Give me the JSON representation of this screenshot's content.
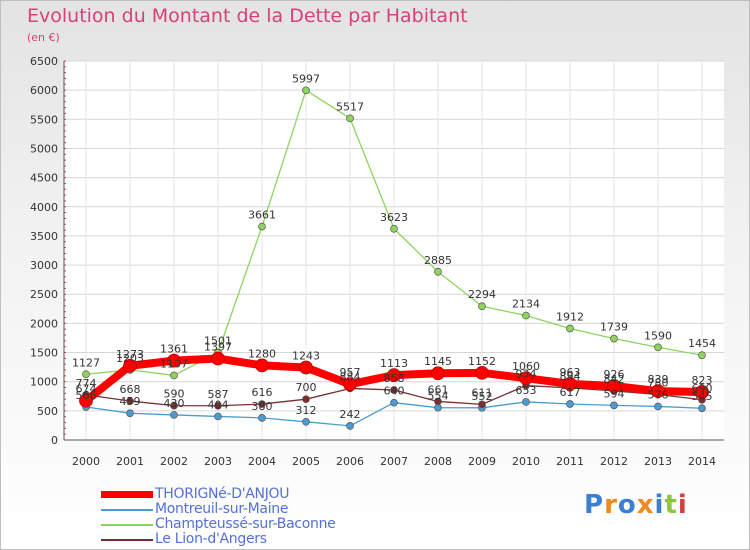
{
  "chart_data": {
    "type": "line",
    "title": "Evolution du Montant de la Dette par Habitant",
    "subtitle": "(en €)",
    "x": [
      "2000",
      "2001",
      "2002",
      "2003",
      "2004",
      "2005",
      "2006",
      "2007",
      "2008",
      "2009",
      "2010",
      "2011",
      "2012",
      "2013",
      "2014"
    ],
    "ylim": [
      0,
      6500
    ],
    "yticks": [
      "0",
      "500",
      "1000",
      "1500",
      "2000",
      "2500",
      "3000",
      "3500",
      "4000",
      "4500",
      "5000",
      "5500",
      "6000",
      "6500"
    ],
    "grid": true,
    "legend_position": "bottom-left",
    "series": [
      {
        "name": "Champteussé-sur-Baconne",
        "color": "#8fd35e",
        "values": [
          1127,
          1203,
          1107,
          1501,
          3661,
          5997,
          5517,
          3623,
          2885,
          2294,
          2134,
          1912,
          1739,
          1590,
          1454
        ],
        "labels": [
          "1127",
          "1203",
          "1107",
          "1501",
          "3661",
          "5997",
          "5517",
          "3623",
          "2885",
          "2294",
          "2134",
          "1912",
          "1739",
          "1590",
          "1454"
        ]
      },
      {
        "name": "Montreuil-sur-Maine",
        "color": "#4c9bd0",
        "values": [
          566,
          459,
          430,
          404,
          380,
          312,
          242,
          640,
          554,
          552,
          653,
          617,
          594,
          576,
          545
        ],
        "labels": [
          "566",
          "459",
          "430",
          "404",
          "380",
          "312",
          "242",
          "640",
          "554",
          "552",
          "653",
          "617",
          "594",
          "576",
          "545"
        ]
      },
      {
        "name": "Le Lion-d'Angers",
        "color": "#7a2f2f",
        "values": [
          774,
          668,
          590,
          587,
          616,
          700,
          884,
          858,
          661,
          611,
          934,
          894,
          842,
          780,
          690
        ],
        "labels": [
          "774",
          "668",
          "590",
          "587",
          "616",
          "700",
          "884",
          "858",
          "661",
          "611",
          "934",
          "894",
          "842",
          "780",
          "690"
        ]
      },
      {
        "name": "THORIGNé-D'ANJOU",
        "color": "#ff0000",
        "values": [
          674,
          1273,
          1361,
          1397,
          1280,
          1243,
          957,
          1113,
          1145,
          1152,
          1060,
          963,
          926,
          839,
          823
        ],
        "labels": [
          "674",
          "1273",
          "1361",
          "1397",
          "1280",
          "1243",
          "957",
          "1113",
          "1145",
          "1152",
          "1060",
          "963",
          "926",
          "839",
          "823"
        ]
      }
    ]
  },
  "legend": [
    {
      "label": "THORIGNé-D'ANJOU",
      "color": "#ff0000",
      "thick": true
    },
    {
      "label": "Montreuil-sur-Maine",
      "color": "#4c9bd0",
      "thick": false
    },
    {
      "label": "Champteussé-sur-Baconne",
      "color": "#8fd35e",
      "thick": false
    },
    {
      "label": "Le Lion-d'Angers",
      "color": "#7a2f2f",
      "thick": false
    }
  ],
  "brand": {
    "text": "Proxiti",
    "colors": [
      "#3c7fd0",
      "#f08a1e",
      "#3c7fd0",
      "#f08a1e",
      "#3c7fd0",
      "#8fc63f",
      "#d04040"
    ]
  }
}
